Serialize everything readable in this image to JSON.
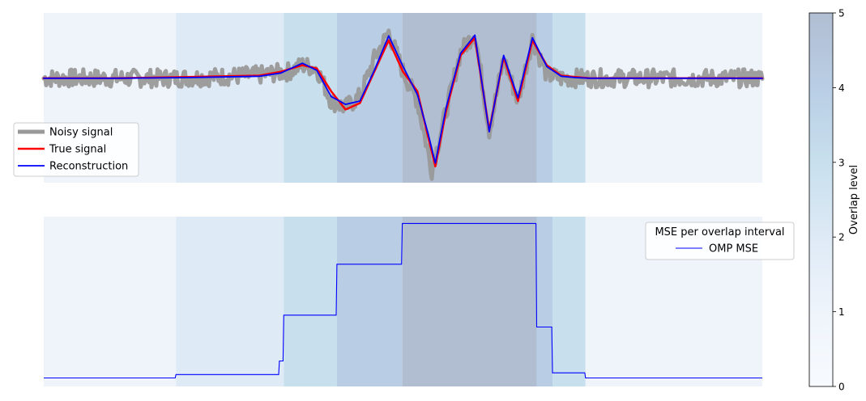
{
  "chart_data": [
    {
      "type": "line",
      "panel": "top",
      "ylim": [
        -1.6,
        1.0
      ],
      "x_range": [
        0,
        1000
      ],
      "legend_placement": "middle-left",
      "series": [
        {
          "name": "Noisy signal",
          "color": "#999999",
          "x": [
            0,
            60,
            120,
            180,
            240,
            300,
            340,
            360,
            380,
            400,
            420,
            440,
            460,
            480,
            500,
            520,
            540,
            560,
            580,
            600,
            620,
            640,
            660,
            680,
            700,
            720,
            740,
            760,
            780,
            800,
            850,
            900,
            950,
            1000
          ],
          "y": [
            0,
            0,
            0,
            0,
            0.02,
            0.05,
            0.1,
            0.2,
            0.15,
            -0.35,
            -0.45,
            -0.28,
            0.3,
            0.7,
            0.1,
            -0.35,
            -1.4,
            -0.5,
            0.4,
            0.7,
            -0.8,
            0.3,
            -0.35,
            0.6,
            0.05,
            0,
            0,
            0,
            0,
            0,
            0,
            0,
            0,
            0
          ]
        },
        {
          "name": "True signal",
          "color": "#ff0000",
          "x": [
            0,
            100,
            200,
            300,
            330,
            360,
            380,
            400,
            420,
            440,
            460,
            480,
            500,
            520,
            535,
            545,
            560,
            580,
            600,
            620,
            640,
            660,
            680,
            700,
            720,
            740,
            760,
            800,
            900,
            1000
          ],
          "y": [
            0,
            0,
            0.02,
            0.04,
            0.1,
            0.2,
            0.15,
            -0.2,
            -0.48,
            -0.38,
            0.1,
            0.58,
            0.1,
            -0.2,
            -0.9,
            -1.35,
            -0.5,
            0.35,
            0.62,
            -0.8,
            0.32,
            -0.35,
            0.58,
            0.2,
            0.04,
            0.02,
            0,
            0,
            0,
            0
          ]
        },
        {
          "name": "Reconstruction",
          "color": "#0000ff",
          "x": [
            0,
            100,
            200,
            300,
            330,
            360,
            380,
            400,
            420,
            440,
            460,
            480,
            500,
            520,
            535,
            545,
            560,
            580,
            600,
            620,
            640,
            660,
            680,
            700,
            720,
            740,
            760,
            800,
            900,
            1000
          ],
          "y": [
            0,
            0,
            0.01,
            0.03,
            0.08,
            0.23,
            0.12,
            -0.28,
            -0.4,
            -0.35,
            0.12,
            0.65,
            0.18,
            -0.25,
            -0.85,
            -1.3,
            -0.45,
            0.38,
            0.66,
            -0.82,
            0.35,
            -0.3,
            0.62,
            0.18,
            0.03,
            0.01,
            0,
            0,
            0,
            0
          ]
        }
      ]
    },
    {
      "type": "line",
      "panel": "bottom",
      "ylim": [
        0,
        1
      ],
      "x_range": [
        0,
        1000
      ],
      "legend_title": "MSE per overlap interval",
      "legend_placement": "top-right",
      "series": [
        {
          "name": "OMP MSE",
          "color": "#0000ff",
          "x": [
            0,
            183,
            184,
            327,
            328,
            333,
            334,
            407,
            408,
            498,
            499,
            685,
            686,
            707,
            708,
            753,
            754,
            1000
          ],
          "y": [
            0.05,
            0.05,
            0.07,
            0.07,
            0.15,
            0.15,
            0.42,
            0.42,
            0.72,
            0.72,
            0.96,
            0.96,
            0.35,
            0.35,
            0.08,
            0.08,
            0.05,
            0.05
          ]
        }
      ]
    },
    {
      "type": "heatmap",
      "panel": "background",
      "colorbar": {
        "label": "Overlap level",
        "vmin": 0,
        "vmax": 5,
        "ticks": [
          "0",
          "1",
          "2",
          "3",
          "4",
          "5"
        ]
      },
      "intervals": [
        {
          "x0": 0,
          "x1": 184,
          "level": 1
        },
        {
          "x0": 184,
          "x1": 328,
          "level": 2
        },
        {
          "x0": 328,
          "x1": 334,
          "level": 2
        },
        {
          "x0": 334,
          "x1": 408,
          "level": 3
        },
        {
          "x0": 408,
          "x1": 499,
          "level": 4
        },
        {
          "x0": 499,
          "x1": 686,
          "level": 5
        },
        {
          "x0": 686,
          "x1": 708,
          "level": 4
        },
        {
          "x0": 708,
          "x1": 754,
          "level": 3
        },
        {
          "x0": 754,
          "x1": 1000,
          "level": 1
        }
      ]
    }
  ]
}
